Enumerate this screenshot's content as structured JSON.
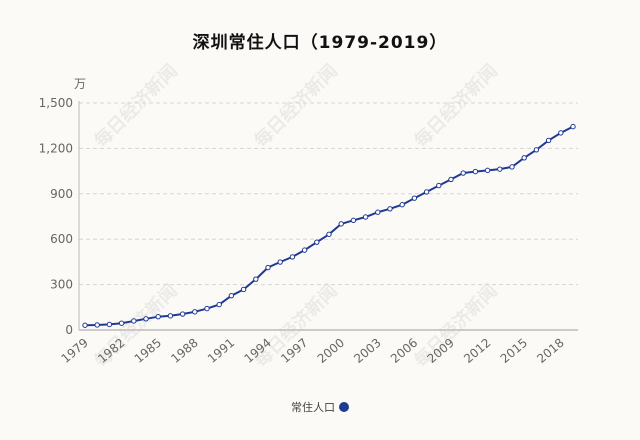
{
  "chart_data": {
    "type": "line",
    "title": "深圳常住人口（1979-2019）",
    "ylabel": "万",
    "xlabel": "",
    "ylim": [
      0,
      1500
    ],
    "yticks": [
      0,
      300,
      600,
      900,
      1200,
      1500
    ],
    "ytick_labels": [
      "0",
      "300",
      "600",
      "900",
      "1,200",
      "1,500"
    ],
    "grid": true,
    "legend_position": "bottom",
    "x": [
      1979,
      1980,
      1981,
      1982,
      1983,
      1984,
      1985,
      1986,
      1987,
      1988,
      1989,
      1990,
      1991,
      1992,
      1993,
      1994,
      1995,
      1996,
      1997,
      1998,
      1999,
      2000,
      2001,
      2002,
      2003,
      2004,
      2005,
      2006,
      2007,
      2008,
      2009,
      2010,
      2011,
      2012,
      2013,
      2014,
      2015,
      2016,
      2017,
      2018,
      2019
    ],
    "xtick_labels": [
      "1979",
      "1982",
      "1985",
      "1988",
      "1991",
      "1994",
      "1997",
      "2000",
      "2003",
      "2006",
      "2009",
      "2012",
      "2015",
      "2018"
    ],
    "series": [
      {
        "name": "常住人口",
        "color": "#1f3a93",
        "values": [
          31.41,
          33.29,
          36.69,
          44.95,
          59.52,
          74.13,
          88.15,
          93.56,
          105.44,
          120.14,
          141.6,
          167.78,
          226.76,
          268.02,
          335.97,
          412.71,
          449.15,
          482.89,
          527.75,
          580.33,
          632.56,
          701.24,
          724.57,
          746.62,
          778.27,
          800.8,
          827.75,
          871.1,
          912.37,
          954.28,
          995.01,
          1037.2,
          1046.74,
          1054.74,
          1062.89,
          1077.89,
          1137.87,
          1190.84,
          1252.83,
          1302.66,
          1343.88
        ]
      }
    ]
  },
  "watermark": "每日经济新闻"
}
